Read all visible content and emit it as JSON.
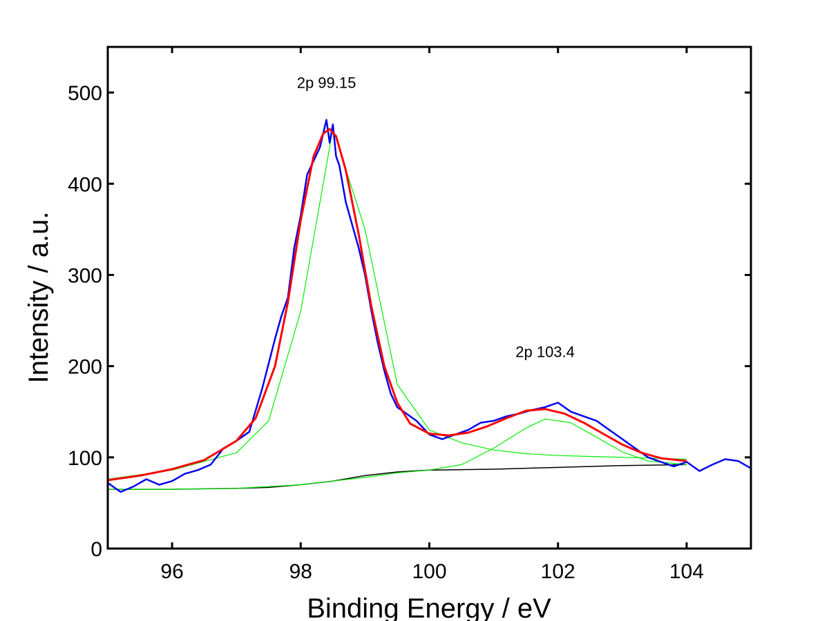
{
  "chart_data": {
    "type": "line",
    "xlabel": "Binding Energy / eV",
    "ylabel": "Intensity / a.u.",
    "xlim": [
      95,
      105
    ],
    "ylim": [
      0,
      550
    ],
    "x_ticks": [
      96,
      98,
      100,
      102,
      104
    ],
    "y_ticks": [
      0,
      100,
      200,
      300,
      400,
      500
    ],
    "grid": false,
    "legend": "none",
    "annotations": [
      {
        "text": "2p 99.15",
        "x": 98.4,
        "y": 505
      },
      {
        "text": "2p 103.4",
        "x": 101.8,
        "y": 210
      }
    ],
    "colors": {
      "raw": "#0000ee",
      "envelope": "#ff0000",
      "components": "#00ee00",
      "background": "#000000"
    },
    "series": [
      {
        "role": "raw",
        "x": [
          95.0,
          95.2,
          95.4,
          95.6,
          95.8,
          96.0,
          96.2,
          96.4,
          96.6,
          96.8,
          97.0,
          97.2,
          97.4,
          97.6,
          97.7,
          97.8,
          97.9,
          98.0,
          98.1,
          98.2,
          98.3,
          98.4,
          98.45,
          98.5,
          98.55,
          98.6,
          98.7,
          98.8,
          98.9,
          99.0,
          99.1,
          99.2,
          99.3,
          99.4,
          99.5,
          99.6,
          99.8,
          100.0,
          100.2,
          100.4,
          100.6,
          100.8,
          101.0,
          101.2,
          101.4,
          101.6,
          101.8,
          102.0,
          102.2,
          102.4,
          102.6,
          102.8,
          103.0,
          103.2,
          103.4,
          103.6,
          103.8,
          104.0,
          104.2,
          104.4,
          104.6,
          104.8,
          105.0
        ],
        "values": [
          72,
          62,
          68,
          76,
          70,
          74,
          82,
          86,
          92,
          110,
          118,
          128,
          175,
          230,
          255,
          275,
          330,
          365,
          410,
          425,
          440,
          470,
          445,
          465,
          430,
          420,
          380,
          355,
          330,
          300,
          260,
          225,
          195,
          170,
          155,
          150,
          140,
          125,
          120,
          125,
          130,
          138,
          140,
          145,
          148,
          152,
          155,
          160,
          150,
          145,
          140,
          130,
          120,
          110,
          100,
          95,
          90,
          95,
          85,
          92,
          98,
          96,
          88
        ]
      },
      {
        "role": "envelope",
        "x": [
          95.0,
          95.5,
          96.0,
          96.5,
          97.0,
          97.3,
          97.6,
          97.8,
          98.0,
          98.2,
          98.35,
          98.45,
          98.55,
          98.7,
          98.9,
          99.1,
          99.3,
          99.5,
          99.7,
          100.0,
          100.3,
          100.6,
          100.9,
          101.2,
          101.5,
          101.8,
          102.1,
          102.4,
          102.7,
          103.0,
          103.3,
          103.6,
          104.0
        ],
        "values": [
          75,
          80,
          87,
          97,
          118,
          143,
          200,
          270,
          360,
          430,
          455,
          460,
          452,
          415,
          345,
          265,
          200,
          160,
          137,
          126,
          124,
          127,
          134,
          143,
          151,
          153,
          148,
          138,
          126,
          114,
          105,
          99,
          96
        ]
      },
      {
        "role": "component",
        "x": [
          95.0,
          96.0,
          97.0,
          97.5,
          98.0,
          98.5,
          99.0,
          99.5,
          100.0,
          100.5,
          101.0,
          101.5,
          102.0,
          102.5,
          103.0,
          103.5,
          104.0
        ],
        "values": [
          76,
          86,
          105,
          140,
          260,
          460,
          350,
          180,
          130,
          116,
          108,
          104,
          102,
          101,
          100,
          99,
          98
        ]
      },
      {
        "role": "component",
        "x": [
          95.0,
          96.0,
          97.0,
          98.0,
          98.5,
          99.0,
          99.5,
          100.0,
          100.5,
          101.0,
          101.5,
          101.8,
          102.2,
          102.6,
          103.0,
          103.4,
          104.0
        ],
        "values": [
          65,
          65,
          66,
          70,
          74,
          78,
          83,
          86,
          92,
          110,
          132,
          142,
          138,
          122,
          106,
          96,
          92
        ]
      },
      {
        "role": "background",
        "x": [
          95.0,
          96.0,
          97.0,
          97.5,
          98.0,
          98.5,
          99.0,
          99.5,
          100.0,
          101.0,
          102.0,
          103.0,
          104.0
        ],
        "values": [
          65,
          65,
          66,
          67,
          70,
          74,
          80,
          84,
          86,
          87,
          89,
          91,
          92
        ]
      }
    ]
  }
}
